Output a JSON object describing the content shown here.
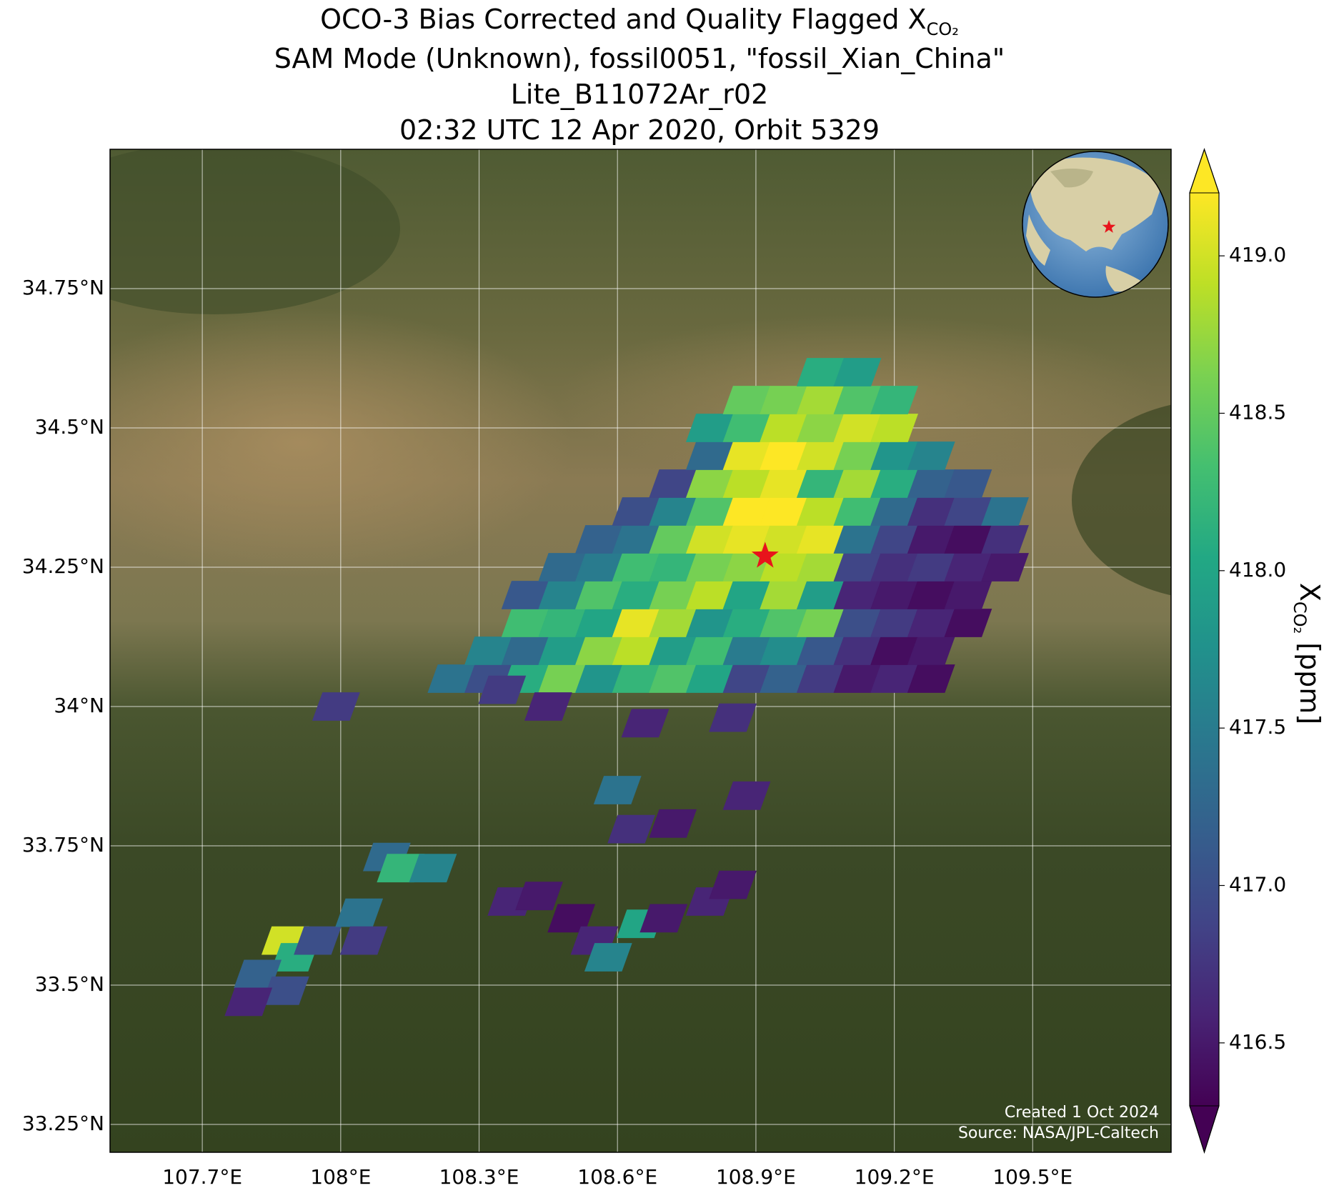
{
  "chart_data": {
    "type": "map",
    "title": "OCO-3 Bias Corrected and Quality Flagged X",
    "title_subscript": "CO₂",
    "subtitle": [
      "SAM Mode (Unknown), fossil0051, \"fossil_Xian_China\"",
      "Lite_B11072Ar_r02",
      "02:32 UTC 12 Apr 2020, Orbit 5329"
    ],
    "xlim": [
      107.5,
      109.8
    ],
    "ylim": [
      33.2,
      35.0
    ],
    "xticks": [
      {
        "value": 107.7,
        "label": "107.7°E"
      },
      {
        "value": 108.0,
        "label": "108°E"
      },
      {
        "value": 108.3,
        "label": "108.3°E"
      },
      {
        "value": 108.6,
        "label": "108.6°E"
      },
      {
        "value": 108.9,
        "label": "108.9°E"
      },
      {
        "value": 109.2,
        "label": "109.2°E"
      },
      {
        "value": 109.5,
        "label": "109.5°E"
      }
    ],
    "yticks": [
      {
        "value": 33.25,
        "label": "33.25°N"
      },
      {
        "value": 33.5,
        "label": "33.5°N"
      },
      {
        "value": 33.75,
        "label": "33.75°N"
      },
      {
        "value": 34.0,
        "label": "34°N"
      },
      {
        "value": 34.25,
        "label": "34.25°N"
      },
      {
        "value": 34.5,
        "label": "34.5°N"
      },
      {
        "value": 34.75,
        "label": "34.75°N"
      }
    ],
    "grid": true,
    "colormap": "viridis",
    "clim": [
      416.3,
      419.2
    ],
    "cticks": [
      416.5,
      {
        "value": 417,
        "label": "417.0"
      },
      417.5,
      {
        "value": 418,
        "label": "418.0"
      },
      418.5,
      {
        "value": 419,
        "label": "419.0"
      }
    ],
    "colorbar_extend": "both",
    "colorbar_label": "X",
    "colorbar_label_subscript": "CO₂",
    "colorbar_label_unit": "[ppm]",
    "target": {
      "lon": 108.92,
      "lat": 34.27,
      "color": "#e8141b"
    },
    "credits": [
      "Created 1 Oct 2024",
      "Source: NASA/JPL-Caltech"
    ],
    "soundings": {
      "lon": [
        108.24,
        108.32,
        108.32,
        108.4,
        108.4,
        108.4,
        108.4,
        108.48,
        108.48,
        108.48,
        108.48,
        108.48,
        108.56,
        108.56,
        108.56,
        108.56,
        108.56,
        108.56,
        108.64,
        108.64,
        108.64,
        108.64,
        108.64,
        108.64,
        108.64,
        108.72,
        108.72,
        108.72,
        108.72,
        108.72,
        108.72,
        108.72,
        108.72,
        108.8,
        108.8,
        108.8,
        108.8,
        108.8,
        108.8,
        108.8,
        108.8,
        108.8,
        108.8,
        108.88,
        108.88,
        108.88,
        108.88,
        108.88,
        108.88,
        108.88,
        108.88,
        108.88,
        108.88,
        108.88,
        108.96,
        108.96,
        108.96,
        108.96,
        108.96,
        108.96,
        108.96,
        108.96,
        108.96,
        108.96,
        108.96,
        109.04,
        109.04,
        109.04,
        109.04,
        109.04,
        109.04,
        109.04,
        109.04,
        109.04,
        109.04,
        109.04,
        109.04,
        109.12,
        109.12,
        109.12,
        109.12,
        109.12,
        109.12,
        109.12,
        109.12,
        109.12,
        109.12,
        109.12,
        109.12,
        109.2,
        109.2,
        109.2,
        109.2,
        109.2,
        109.2,
        109.2,
        109.2,
        109.2,
        109.2,
        109.2,
        109.28,
        109.28,
        109.28,
        109.28,
        109.28,
        109.28,
        109.28,
        109.28,
        109.28,
        109.36,
        109.36,
        109.36,
        109.36,
        109.36,
        109.36,
        109.44,
        109.44,
        109.44,
        107.88,
        107.9,
        107.95,
        107.82,
        107.88,
        107.8,
        108.1,
        108.13,
        108.2,
        108.04,
        108.05,
        108.5,
        108.55,
        108.58,
        108.65,
        108.7,
        108.8,
        108.85,
        108.6,
        108.63,
        108.72,
        108.88,
        108.66,
        108.85,
        108.35,
        108.45,
        107.99,
        108.37,
        108.43
      ],
      "lat": [
        34.05,
        34.05,
        34.1,
        34.05,
        34.1,
        34.15,
        34.2,
        34.05,
        34.1,
        34.15,
        34.2,
        34.25,
        34.05,
        34.1,
        34.15,
        34.2,
        34.25,
        34.3,
        34.05,
        34.1,
        34.15,
        34.2,
        34.25,
        34.3,
        34.35,
        34.05,
        34.1,
        34.15,
        34.2,
        34.25,
        34.3,
        34.35,
        34.4,
        34.05,
        34.1,
        34.15,
        34.2,
        34.25,
        34.3,
        34.35,
        34.4,
        34.45,
        34.5,
        34.05,
        34.1,
        34.15,
        34.2,
        34.25,
        34.3,
        34.35,
        34.4,
        34.45,
        34.5,
        34.55,
        34.05,
        34.1,
        34.15,
        34.2,
        34.25,
        34.3,
        34.35,
        34.4,
        34.45,
        34.5,
        34.55,
        34.05,
        34.1,
        34.15,
        34.2,
        34.25,
        34.3,
        34.35,
        34.4,
        34.45,
        34.5,
        34.55,
        34.6,
        34.05,
        34.1,
        34.15,
        34.2,
        34.25,
        34.3,
        34.35,
        34.4,
        34.45,
        34.5,
        34.55,
        34.6,
        34.05,
        34.1,
        34.15,
        34.2,
        34.25,
        34.3,
        34.35,
        34.4,
        34.45,
        34.5,
        34.55,
        34.05,
        34.1,
        34.15,
        34.2,
        34.25,
        34.3,
        34.35,
        34.4,
        34.45,
        34.15,
        34.2,
        34.25,
        34.3,
        34.35,
        34.4,
        34.25,
        34.3,
        34.35,
        33.58,
        33.55,
        33.58,
        33.52,
        33.49,
        33.47,
        33.73,
        33.71,
        33.71,
        33.63,
        33.58,
        33.62,
        33.58,
        33.55,
        33.61,
        33.62,
        33.65,
        33.68,
        33.85,
        33.78,
        33.79,
        33.84,
        33.97,
        33.98,
        34.03,
        34.0,
        34.0,
        33.65,
        33.66
      ],
      "xco2": [
        417.4,
        417.0,
        417.6,
        418.1,
        417.3,
        418.3,
        417.1,
        418.6,
        417.9,
        418.2,
        417.6,
        417.3,
        417.8,
        418.7,
        418.0,
        418.4,
        417.5,
        417.2,
        418.2,
        418.9,
        419.1,
        418.1,
        418.3,
        417.4,
        417.0,
        418.4,
        417.9,
        418.8,
        418.6,
        418.2,
        418.5,
        417.6,
        416.9,
        418.0,
        418.3,
        417.8,
        418.9,
        418.6,
        419.0,
        418.4,
        418.7,
        417.3,
        417.9,
        416.9,
        417.5,
        418.1,
        418.0,
        418.7,
        419.1,
        419.2,
        418.9,
        419.1,
        418.3,
        418.5,
        417.2,
        417.7,
        418.4,
        418.8,
        418.9,
        419.0,
        419.2,
        419.1,
        419.2,
        418.9,
        418.6,
        416.8,
        417.1,
        418.6,
        417.9,
        418.8,
        419.1,
        418.9,
        418.2,
        419.0,
        418.7,
        418.8,
        418.1,
        416.5,
        416.7,
        417.0,
        416.6,
        416.9,
        417.4,
        418.3,
        418.8,
        418.6,
        419.0,
        418.4,
        417.9,
        416.6,
        416.4,
        416.8,
        416.5,
        416.7,
        416.9,
        417.3,
        418.1,
        417.8,
        418.9,
        418.2,
        416.4,
        416.5,
        416.6,
        416.4,
        416.8,
        416.5,
        416.7,
        417.2,
        417.6,
        416.4,
        416.5,
        416.6,
        416.4,
        416.9,
        417.1,
        416.5,
        416.7,
        417.4,
        419.0,
        418.1,
        417.0,
        417.2,
        417.0,
        416.6,
        417.3,
        418.2,
        417.6,
        417.4,
        416.8,
        416.4,
        416.6,
        417.6,
        418.0,
        416.5,
        416.6,
        416.5,
        417.4,
        416.7,
        416.5,
        416.6,
        416.6,
        416.7,
        416.8,
        416.6,
        416.8,
        416.6,
        416.5
      ]
    }
  }
}
